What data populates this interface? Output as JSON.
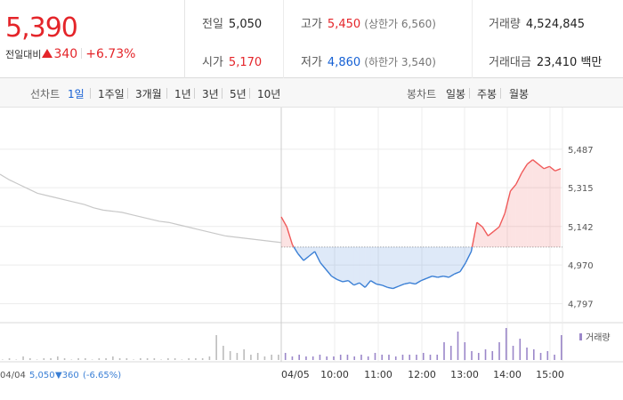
{
  "quote": {
    "price": "5,390",
    "change_label": "전일대비",
    "change_value": "340",
    "change_pct": "+6.73%"
  },
  "stats": {
    "prev_close": {
      "label": "전일",
      "value": "5,050"
    },
    "open": {
      "label": "시가",
      "value": "5,170"
    },
    "high": {
      "label": "고가",
      "value": "5,450",
      "limit": "(상한가 6,560)"
    },
    "low": {
      "label": "저가",
      "value": "4,860",
      "limit": "(하한가 3,540)"
    },
    "volume": {
      "label": "거래량",
      "value": "4,524,845"
    },
    "amount": {
      "label": "거래대금",
      "value": "23,410 백만"
    }
  },
  "tabs": {
    "line_label": "선차트",
    "line_periods": [
      "1일",
      "1주일",
      "3개월",
      "1년",
      "3년",
      "5년",
      "10년"
    ],
    "candle_label": "봉차트",
    "candle_periods": [
      "일봉",
      "주봉",
      "월봉"
    ]
  },
  "chart_data": {
    "type": "line",
    "series": [
      {
        "values": [
          5375,
          5350,
          5330,
          5310,
          5290,
          5280,
          5270,
          5260,
          5250,
          5240,
          5225,
          5215,
          5210,
          5205,
          5195,
          5185,
          5175,
          5165,
          5160,
          5150,
          5140,
          5130,
          5120,
          5110,
          5100,
          5095,
          5090,
          5085,
          5080,
          5075,
          5070
        ]
      },
      {
        "values": [
          5185,
          5140,
          5060,
          5020,
          4990,
          5010,
          5030,
          4980,
          4950,
          4920,
          4905,
          4895,
          4900,
          4880,
          4890,
          4870,
          4900,
          4885,
          4880,
          4870,
          4865,
          4875,
          4885,
          4890,
          4885,
          4900,
          4910,
          4920,
          4915,
          4920,
          4915,
          4930,
          4940,
          4980,
          5030,
          5160,
          5140,
          5100,
          5120,
          5140,
          5200,
          5300,
          5330,
          5380,
          5420,
          5440,
          5420,
          5400,
          5410,
          5390,
          5400
        ]
      }
    ],
    "reference_line": 5050,
    "y_ticks": [
      "5,487",
      "5,315",
      "5,142",
      "4,970",
      "4,797"
    ],
    "x_ticks": [
      "04/05",
      "10:00",
      "11:00",
      "12:00",
      "13:00",
      "14:00",
      "15:00"
    ],
    "ylim": [
      4760,
      5530
    ],
    "volume_label": "거래량",
    "volume_series": [
      0,
      1,
      0,
      2,
      1,
      0,
      1,
      1,
      2,
      1,
      0,
      1,
      1,
      0,
      1,
      1,
      2,
      1,
      1,
      0,
      1,
      1,
      1,
      0,
      1,
      1,
      0,
      1,
      1,
      1,
      2,
      14,
      8,
      5,
      4,
      6,
      3,
      4,
      2,
      3,
      3,
      4,
      2,
      3,
      2,
      2,
      3,
      2,
      2,
      3,
      3,
      2,
      3,
      2,
      4,
      3,
      3,
      2,
      3,
      3,
      3,
      4,
      3,
      3,
      10,
      8,
      16,
      10,
      5,
      4,
      6,
      5,
      10,
      18,
      8,
      12,
      7,
      6,
      4,
      5,
      3,
      14
    ],
    "prev_day": {
      "date": "04/04",
      "close": "5,050",
      "change": "▼360",
      "change_pct": "(-6.65%)"
    },
    "colors": {
      "up": "#f05a5a",
      "down": "#3a7fd5",
      "prev": "#c8c8c8",
      "volume": "#9b87c9"
    }
  }
}
